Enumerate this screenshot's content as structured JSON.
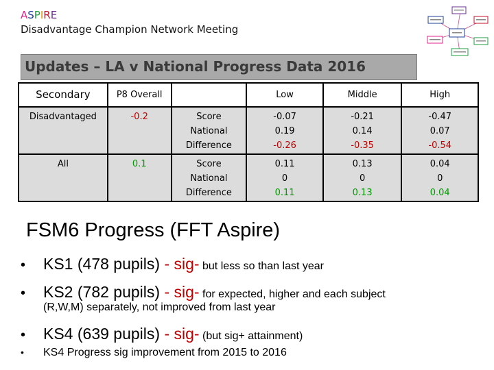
{
  "header": {
    "brand_letters": [
      {
        "char": "A",
        "color": "#e0218a"
      },
      {
        "char": "S",
        "color": "#1f3f99"
      },
      {
        "char": "P",
        "color": "#1f9f3f"
      },
      {
        "char": "I",
        "color": "#f08a00"
      },
      {
        "char": "R",
        "color": "#c4102a"
      },
      {
        "char": "E",
        "color": "#6b2c91"
      }
    ],
    "subtitle": "Disadvantage Champion Network Meeting"
  },
  "banner": {
    "title": "Updates – LA v National Progress Data 2016"
  },
  "table": {
    "headers": {
      "secondary": "Secondary",
      "p8": "P8 Overall",
      "low": "Low",
      "middle": "Middle",
      "high": "High"
    },
    "rows": [
      {
        "group": "Disadvantaged",
        "p8": "-0.2",
        "measures": [
          "Score",
          "National",
          "Difference"
        ],
        "low": [
          "-0.07",
          "0.19",
          "-0.26"
        ],
        "middle": [
          "-0.21",
          "0.14",
          "-0.35"
        ],
        "high": [
          "-0.47",
          "0.07",
          "-0.54"
        ]
      },
      {
        "group": "All",
        "p8": "0.1",
        "measures": [
          "Score",
          "National",
          "Difference"
        ],
        "low": [
          "0.11",
          "0",
          "0.11"
        ],
        "middle": [
          "0.13",
          "0",
          "0.13"
        ],
        "high": [
          "0.04",
          "0",
          "0.04"
        ]
      }
    ]
  },
  "section": {
    "title": "FSM6 Progress (FFT Aspire)"
  },
  "bullets": {
    "ks1": {
      "main": "KS1 (478 pupils) ",
      "sig": " - sig-",
      "note": " but less so than last year"
    },
    "ks2": {
      "main": "KS2 (782 pupils) ",
      "sig": " - sig-",
      "note": " for expected, higher and each subject",
      "cont": "(R,W,M) separately, not improved from last year"
    },
    "ks4": {
      "main": "KS4 (639 pupils) ",
      "sig": " - sig-",
      "note": " (but sig+ attainment)"
    },
    "ks4p": {
      "text": "KS4 Progress sig improvement from 2015 to 2016"
    }
  }
}
